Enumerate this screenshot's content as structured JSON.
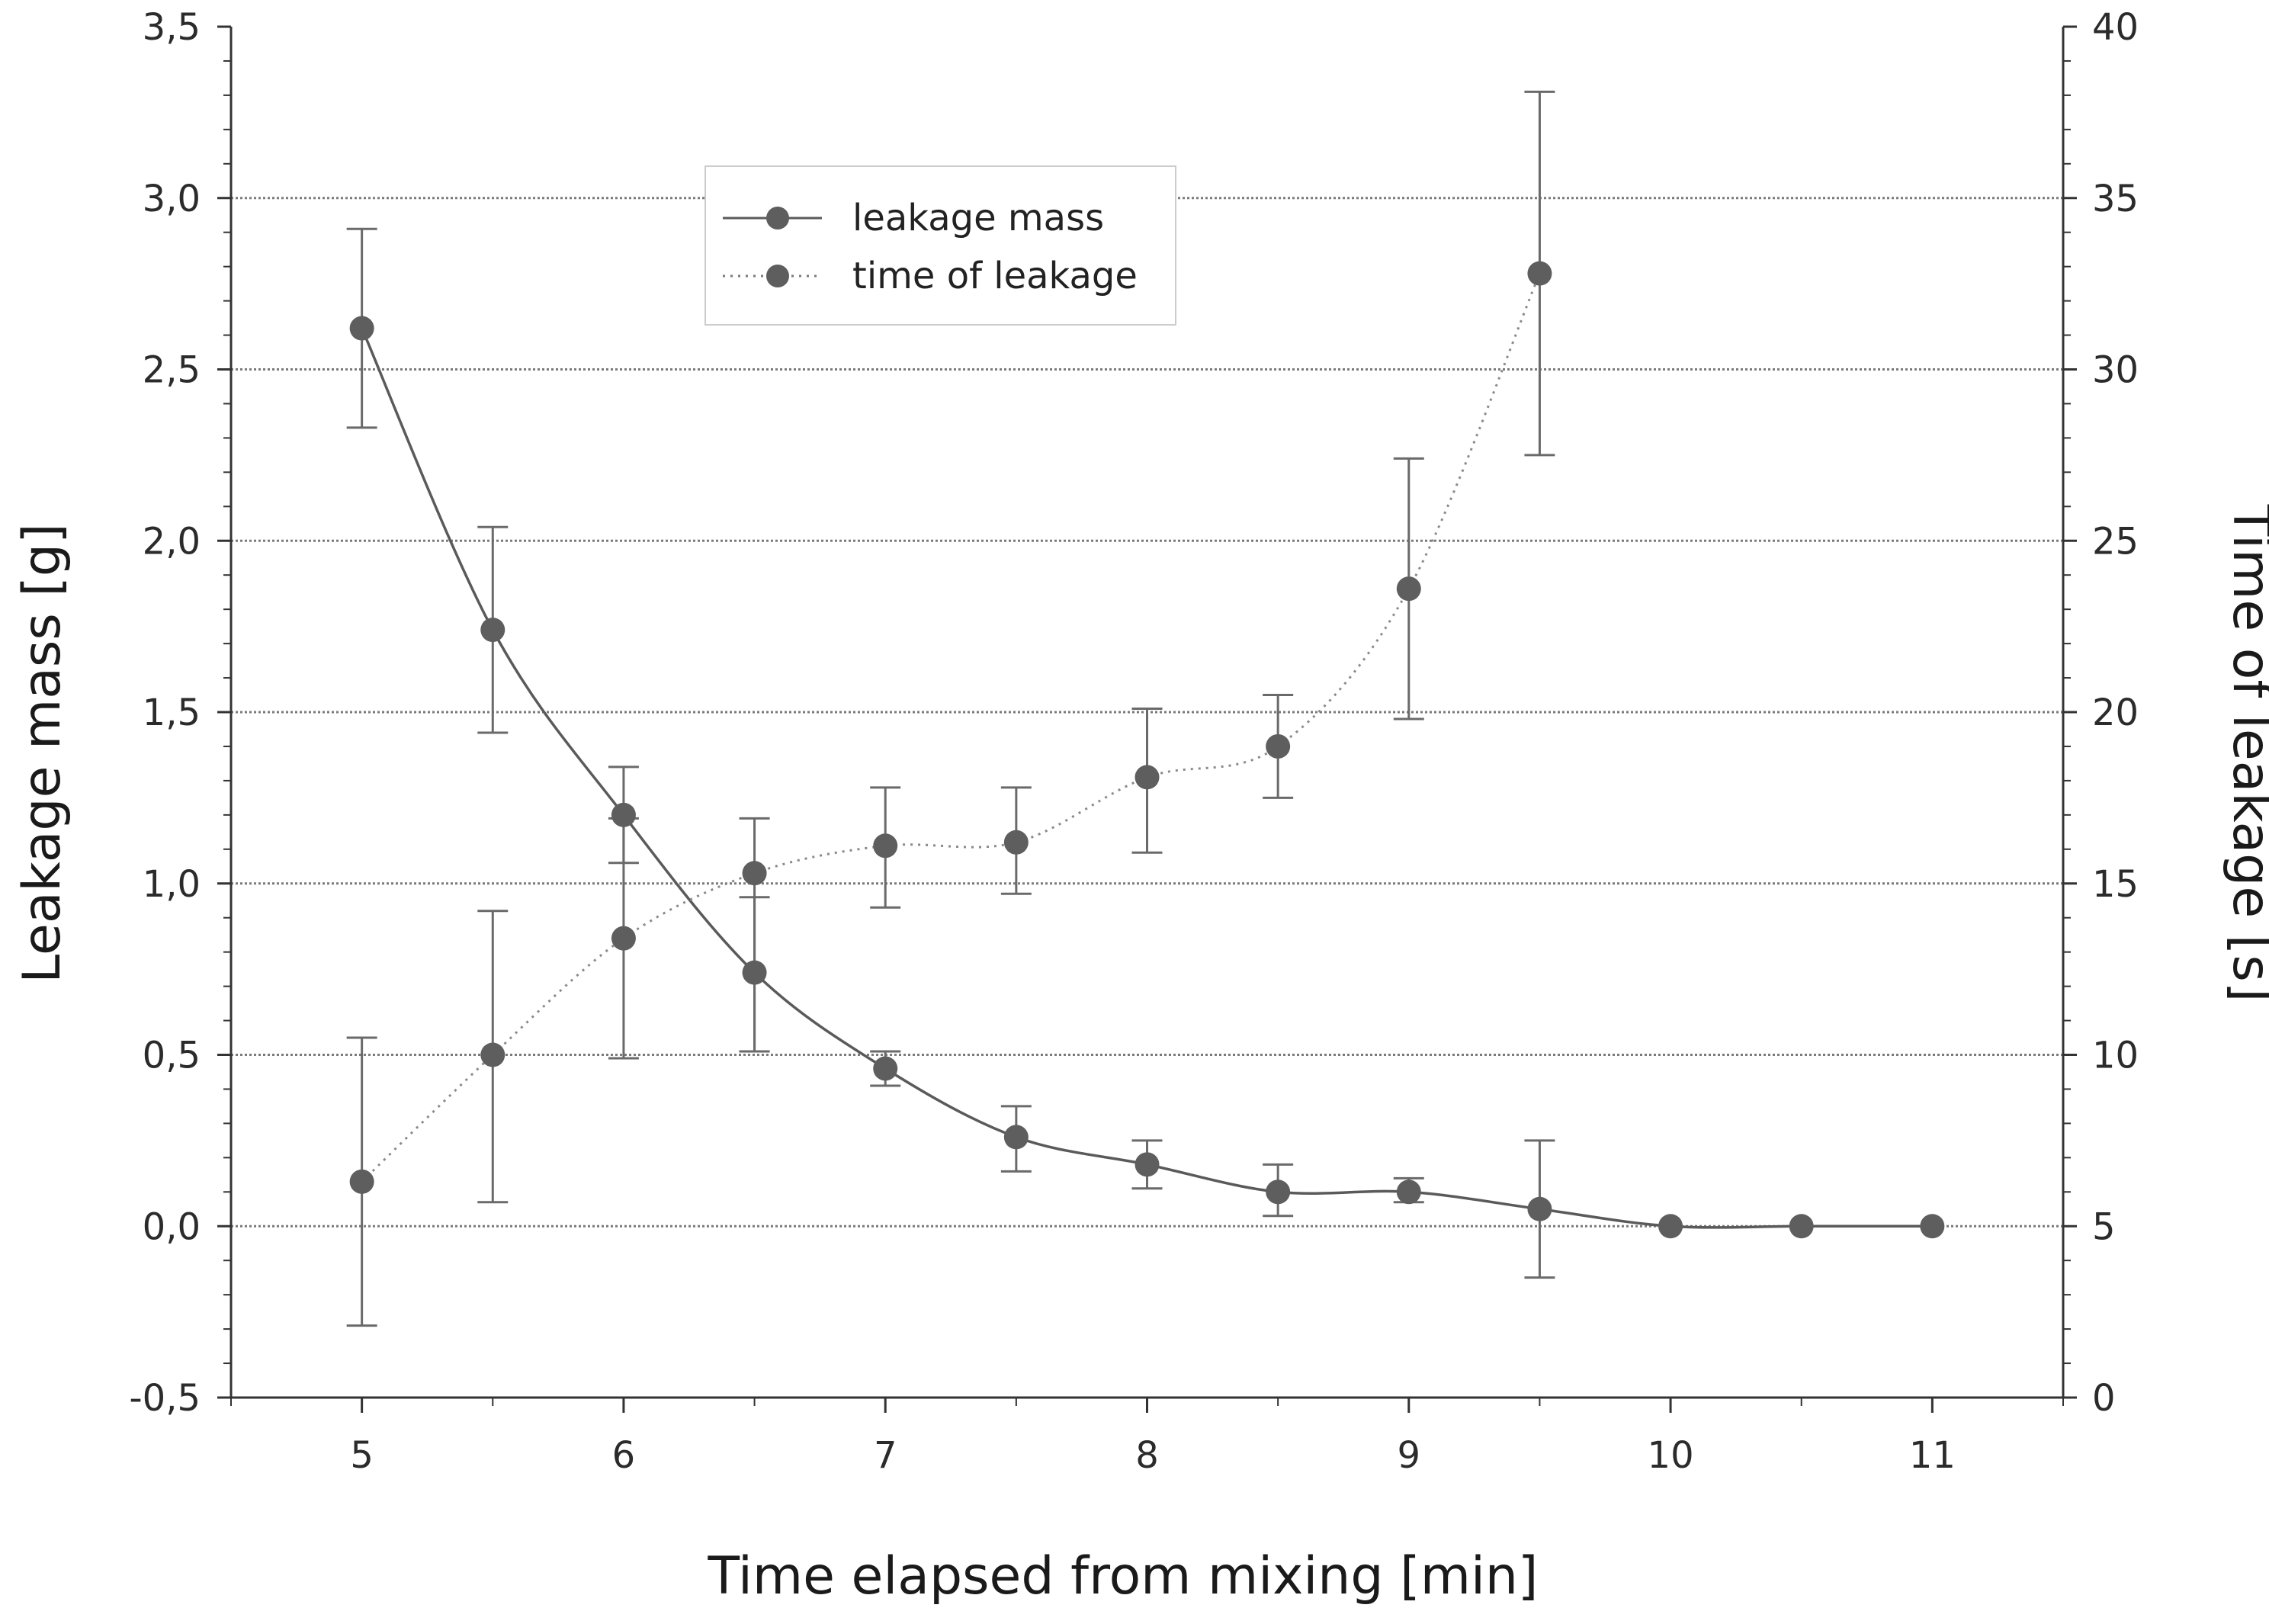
{
  "chart_data": {
    "type": "line",
    "title": "",
    "xlabel": "Time elapsed from mixing [min]",
    "ylabel": "Leakage mass [g]",
    "y2label": "Time of leakage [s]",
    "xlim": [
      4.5,
      11.5
    ],
    "ylim": [
      -0.5,
      3.5
    ],
    "y2lim": [
      0,
      40
    ],
    "grid": "horizontal dotted",
    "legend_position": "top-center",
    "x_ticks": [
      5,
      6,
      7,
      8,
      9,
      10,
      11
    ],
    "x_tick_labels": [
      "5",
      "6",
      "7",
      "8",
      "9",
      "10",
      "11"
    ],
    "y_ticks": [
      -0.5,
      0,
      0.5,
      1,
      1.5,
      2,
      2.5,
      3,
      3.5
    ],
    "y_tick_labels": [
      "-0,5",
      "0,0",
      "0,5",
      "1,0",
      "1,5",
      "2,0",
      "2,5",
      "3,0",
      "3,5"
    ],
    "y2_ticks": [
      0,
      5,
      10,
      15,
      20,
      25,
      30,
      35,
      40
    ],
    "y2_tick_labels": [
      "0",
      "5",
      "10",
      "15",
      "20",
      "25",
      "30",
      "35",
      "40"
    ],
    "series": [
      {
        "name": "leakage mass",
        "axis": "left",
        "line_style": "solid",
        "x": [
          5,
          5.5,
          6,
          6.5,
          7,
          7.5,
          8,
          8.5,
          9,
          9.5,
          10,
          10.5,
          11
        ],
        "values": [
          2.62,
          1.74,
          1.2,
          0.74,
          0.46,
          0.26,
          0.18,
          0.1,
          0.1,
          0.05,
          0.0,
          0.0,
          0.0
        ],
        "err_low": [
          2.33,
          1.44,
          1.06,
          0.51,
          0.41,
          0.16,
          0.11,
          0.03,
          0.07,
          -0.15,
          null,
          null,
          null
        ],
        "err_high": [
          2.91,
          2.04,
          1.34,
          0.96,
          0.51,
          0.35,
          0.25,
          0.18,
          0.14,
          0.25,
          null,
          null,
          null
        ]
      },
      {
        "name": "time of leakage",
        "axis": "right",
        "line_style": "dotted",
        "x": [
          5,
          5.5,
          6,
          6.5,
          7,
          7.5,
          8,
          8.5,
          9,
          9.5
        ],
        "values": [
          6.3,
          10.0,
          13.4,
          15.3,
          16.1,
          16.2,
          18.1,
          19.0,
          23.6,
          32.8
        ],
        "err_low": [
          2.1,
          5.7,
          9.9,
          10.1,
          14.3,
          14.7,
          15.9,
          17.5,
          19.8,
          27.5
        ],
        "err_high": [
          10.5,
          14.2,
          16.9,
          16.9,
          17.8,
          17.8,
          20.1,
          20.5,
          27.4,
          38.1
        ]
      }
    ]
  },
  "colors": {
    "marker": "#5e5e5e",
    "line": "#5a5a5a",
    "grid": "#7a7a7a",
    "axis": "#333333",
    "error_bar": "#6a6a6a",
    "legend_border": "#cccccc"
  }
}
